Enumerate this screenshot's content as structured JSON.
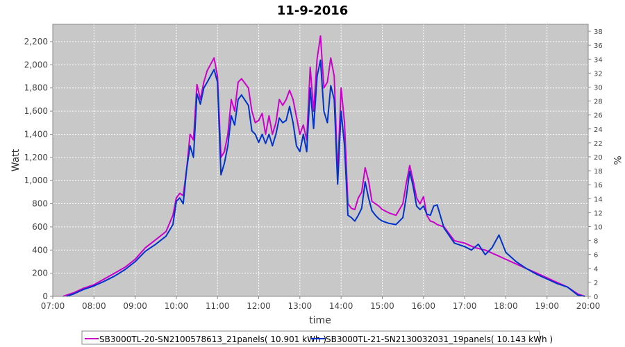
{
  "chart_data": {
    "type": "line",
    "title": "11-9-2016",
    "xlabel": "time",
    "ylabel": "Watt",
    "y2label": "%",
    "xlim": [
      "07:00",
      "20:00"
    ],
    "ylim": [
      0,
      2350
    ],
    "y2lim": [
      0,
      39
    ],
    "x_ticks": [
      "07:00",
      "08:00",
      "09:00",
      "10:00",
      "11:00",
      "12:00",
      "13:00",
      "14:00",
      "15:00",
      "16:00",
      "17:00",
      "18:00",
      "19:00",
      "20:00"
    ],
    "y_ticks": [
      {
        "value": 0,
        "label": "0"
      },
      {
        "value": 200,
        "label": "200"
      },
      {
        "value": 400,
        "label": "400"
      },
      {
        "value": 600,
        "label": "600"
      },
      {
        "value": 800,
        "label": "800"
      },
      {
        "value": 1000,
        "label": "1,000"
      },
      {
        "value": 1200,
        "label": "1,200"
      },
      {
        "value": 1400,
        "label": "1,400"
      },
      {
        "value": 1600,
        "label": "1,600"
      },
      {
        "value": 1800,
        "label": "1,800"
      },
      {
        "value": 2000,
        "label": "2,000"
      },
      {
        "value": 2200,
        "label": "2,200"
      }
    ],
    "y2_ticks": [
      "0",
      "2",
      "4",
      "6",
      "8",
      "10",
      "12",
      "14",
      "16",
      "18",
      "20",
      "22",
      "24",
      "26",
      "28",
      "30",
      "32",
      "34",
      "36",
      "38"
    ],
    "grid": true,
    "background": "#c8c8c8",
    "legend_position": "bottom",
    "series": [
      {
        "name": "SB3000TL-20-SN2100578613_21panels( 10.901 kWh )",
        "color": "#cc00cc",
        "points": [
          [
            "07:15",
            0
          ],
          [
            "07:30",
            30
          ],
          [
            "07:45",
            70
          ],
          [
            "08:00",
            100
          ],
          [
            "08:15",
            150
          ],
          [
            "08:30",
            200
          ],
          [
            "08:45",
            250
          ],
          [
            "09:00",
            320
          ],
          [
            "09:15",
            420
          ],
          [
            "09:30",
            490
          ],
          [
            "09:45",
            560
          ],
          [
            "09:55",
            700
          ],
          [
            "10:00",
            850
          ],
          [
            "10:05",
            890
          ],
          [
            "10:10",
            870
          ],
          [
            "10:15",
            1100
          ],
          [
            "10:20",
            1400
          ],
          [
            "10:25",
            1350
          ],
          [
            "10:30",
            1830
          ],
          [
            "10:35",
            1700
          ],
          [
            "10:40",
            1850
          ],
          [
            "10:45",
            1950
          ],
          [
            "10:55",
            2060
          ],
          [
            "11:00",
            1900
          ],
          [
            "11:05",
            1200
          ],
          [
            "11:10",
            1250
          ],
          [
            "11:15",
            1400
          ],
          [
            "11:20",
            1700
          ],
          [
            "11:25",
            1600
          ],
          [
            "11:30",
            1850
          ],
          [
            "11:35",
            1880
          ],
          [
            "11:45",
            1800
          ],
          [
            "11:50",
            1600
          ],
          [
            "11:55",
            1500
          ],
          [
            "12:00",
            1520
          ],
          [
            "12:05",
            1580
          ],
          [
            "12:10",
            1400
          ],
          [
            "12:15",
            1560
          ],
          [
            "12:20",
            1400
          ],
          [
            "12:25",
            1500
          ],
          [
            "12:30",
            1700
          ],
          [
            "12:35",
            1650
          ],
          [
            "12:40",
            1700
          ],
          [
            "12:45",
            1780
          ],
          [
            "12:50",
            1700
          ],
          [
            "12:55",
            1550
          ],
          [
            "13:00",
            1400
          ],
          [
            "13:05",
            1480
          ],
          [
            "13:10",
            1350
          ],
          [
            "13:15",
            1980
          ],
          [
            "13:20",
            1600
          ],
          [
            "13:25",
            2050
          ],
          [
            "13:30",
            2250
          ],
          [
            "13:35",
            1800
          ],
          [
            "13:40",
            1850
          ],
          [
            "13:45",
            2060
          ],
          [
            "13:50",
            1900
          ],
          [
            "13:55",
            1050
          ],
          [
            "14:00",
            1800
          ],
          [
            "14:05",
            1500
          ],
          [
            "14:10",
            800
          ],
          [
            "14:15",
            760
          ],
          [
            "14:20",
            750
          ],
          [
            "14:25",
            850
          ],
          [
            "14:30",
            900
          ],
          [
            "14:35",
            1110
          ],
          [
            "14:40",
            1000
          ],
          [
            "14:45",
            820
          ],
          [
            "14:50",
            800
          ],
          [
            "14:55",
            780
          ],
          [
            "15:00",
            750
          ],
          [
            "15:10",
            720
          ],
          [
            "15:20",
            700
          ],
          [
            "15:30",
            800
          ],
          [
            "15:35",
            980
          ],
          [
            "15:40",
            1130
          ],
          [
            "15:45",
            1000
          ],
          [
            "15:50",
            850
          ],
          [
            "15:55",
            800
          ],
          [
            "16:00",
            860
          ],
          [
            "16:05",
            700
          ],
          [
            "16:10",
            650
          ],
          [
            "16:15",
            640
          ],
          [
            "16:20",
            620
          ],
          [
            "16:30",
            600
          ],
          [
            "16:45",
            480
          ],
          [
            "17:00",
            460
          ],
          [
            "17:15",
            420
          ],
          [
            "17:30",
            400
          ],
          [
            "17:45",
            360
          ],
          [
            "18:00",
            320
          ],
          [
            "18:15",
            280
          ],
          [
            "18:30",
            240
          ],
          [
            "18:45",
            200
          ],
          [
            "19:00",
            160
          ],
          [
            "19:15",
            120
          ],
          [
            "19:30",
            80
          ],
          [
            "19:45",
            20
          ],
          [
            "19:55",
            0
          ]
        ]
      },
      {
        "name": "SB3000TL-21-SN2130032031_19panels( 10.143 kWh )",
        "color": "#0033cc",
        "points": [
          [
            "07:20",
            0
          ],
          [
            "07:30",
            20
          ],
          [
            "07:45",
            60
          ],
          [
            "08:00",
            90
          ],
          [
            "08:15",
            130
          ],
          [
            "08:30",
            175
          ],
          [
            "08:45",
            230
          ],
          [
            "09:00",
            300
          ],
          [
            "09:15",
            390
          ],
          [
            "09:30",
            450
          ],
          [
            "09:45",
            520
          ],
          [
            "09:55",
            620
          ],
          [
            "10:00",
            820
          ],
          [
            "10:05",
            850
          ],
          [
            "10:10",
            800
          ],
          [
            "10:15",
            1100
          ],
          [
            "10:20",
            1300
          ],
          [
            "10:25",
            1200
          ],
          [
            "10:30",
            1750
          ],
          [
            "10:35",
            1660
          ],
          [
            "10:40",
            1800
          ],
          [
            "10:45",
            1850
          ],
          [
            "10:55",
            1960
          ],
          [
            "11:00",
            1850
          ],
          [
            "11:05",
            1050
          ],
          [
            "11:10",
            1150
          ],
          [
            "11:15",
            1300
          ],
          [
            "11:20",
            1560
          ],
          [
            "11:25",
            1480
          ],
          [
            "11:30",
            1700
          ],
          [
            "11:35",
            1740
          ],
          [
            "11:45",
            1650
          ],
          [
            "11:50",
            1430
          ],
          [
            "11:55",
            1400
          ],
          [
            "12:00",
            1330
          ],
          [
            "12:05",
            1400
          ],
          [
            "12:10",
            1320
          ],
          [
            "12:15",
            1400
          ],
          [
            "12:20",
            1300
          ],
          [
            "12:25",
            1400
          ],
          [
            "12:30",
            1540
          ],
          [
            "12:35",
            1500
          ],
          [
            "12:40",
            1520
          ],
          [
            "12:45",
            1640
          ],
          [
            "12:50",
            1500
          ],
          [
            "12:55",
            1300
          ],
          [
            "13:00",
            1250
          ],
          [
            "13:05",
            1400
          ],
          [
            "13:10",
            1250
          ],
          [
            "13:15",
            1800
          ],
          [
            "13:20",
            1450
          ],
          [
            "13:25",
            1900
          ],
          [
            "13:30",
            2040
          ],
          [
            "13:35",
            1600
          ],
          [
            "13:40",
            1500
          ],
          [
            "13:45",
            1820
          ],
          [
            "13:50",
            1700
          ],
          [
            "13:55",
            970
          ],
          [
            "14:00",
            1600
          ],
          [
            "14:05",
            1300
          ],
          [
            "14:10",
            700
          ],
          [
            "14:15",
            680
          ],
          [
            "14:20",
            650
          ],
          [
            "14:25",
            700
          ],
          [
            "14:30",
            760
          ],
          [
            "14:35",
            990
          ],
          [
            "14:40",
            850
          ],
          [
            "14:45",
            740
          ],
          [
            "14:50",
            700
          ],
          [
            "14:55",
            670
          ],
          [
            "15:00",
            650
          ],
          [
            "15:10",
            630
          ],
          [
            "15:20",
            620
          ],
          [
            "15:30",
            680
          ],
          [
            "15:35",
            860
          ],
          [
            "15:40",
            1080
          ],
          [
            "15:45",
            950
          ],
          [
            "15:50",
            780
          ],
          [
            "15:55",
            750
          ],
          [
            "16:00",
            780
          ],
          [
            "16:05",
            710
          ],
          [
            "16:10",
            700
          ],
          [
            "16:15",
            780
          ],
          [
            "16:20",
            790
          ],
          [
            "16:30",
            590
          ],
          [
            "16:45",
            460
          ],
          [
            "17:00",
            430
          ],
          [
            "17:10",
            400
          ],
          [
            "17:20",
            450
          ],
          [
            "17:30",
            360
          ],
          [
            "17:40",
            420
          ],
          [
            "17:50",
            530
          ],
          [
            "18:00",
            380
          ],
          [
            "18:15",
            300
          ],
          [
            "18:30",
            240
          ],
          [
            "18:45",
            190
          ],
          [
            "19:00",
            150
          ],
          [
            "19:15",
            110
          ],
          [
            "19:30",
            80
          ],
          [
            "19:45",
            10
          ],
          [
            "19:55",
            0
          ]
        ]
      }
    ]
  }
}
